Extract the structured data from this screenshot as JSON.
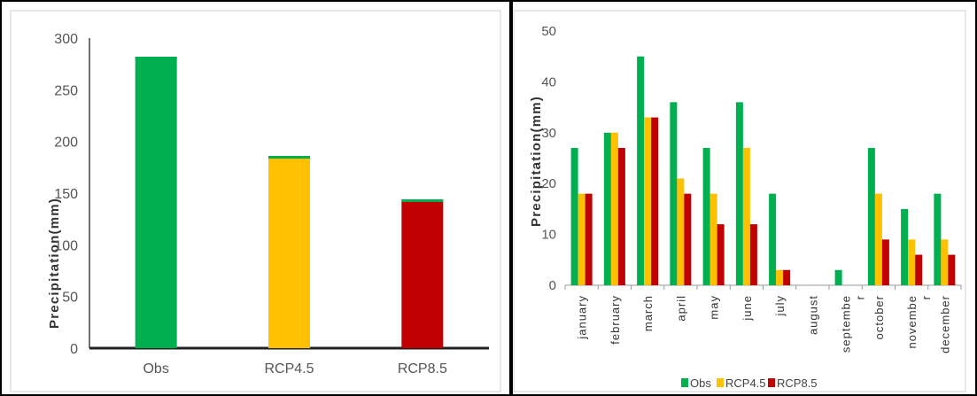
{
  "chart_data": [
    {
      "type": "bar",
      "categories": [
        "Obs",
        "RCP4.5",
        "RCP8.5"
      ],
      "values": [
        282,
        186,
        144
      ],
      "bar_colors": [
        "#00b050",
        "#ffc000",
        "#c00000"
      ],
      "ylabel": "Precipitation(mm)",
      "ylim": [
        0,
        300
      ],
      "yticks": [
        "0",
        "50",
        "100",
        "150",
        "200",
        "250",
        "300"
      ],
      "grid": false,
      "legend": "none"
    },
    {
      "type": "bar",
      "categories": [
        "january",
        "february",
        "march",
        "april",
        "may",
        "june",
        "july",
        "august",
        "septembe r",
        "october",
        "novembe r",
        "december"
      ],
      "series": [
        {
          "name": "Obs",
          "color": "#00b050",
          "values": [
            27,
            30,
            45,
            36,
            27,
            36,
            18,
            0,
            3,
            27,
            15,
            18
          ]
        },
        {
          "name": "RCP4.5",
          "color": "#ffc000",
          "values": [
            18,
            30,
            33,
            21,
            18,
            27,
            3,
            0,
            0,
            18,
            9,
            9
          ]
        },
        {
          "name": "RCP8.5",
          "color": "#c00000",
          "values": [
            18,
            27,
            33,
            18,
            12,
            12,
            3,
            0,
            0,
            9,
            6,
            6
          ]
        }
      ],
      "ylabel": "Precipitation(mm)",
      "ylim": [
        0,
        50
      ],
      "yticks": [
        "0",
        "10",
        "20",
        "30",
        "40",
        "50"
      ],
      "grid": false,
      "legend": "bottom"
    }
  ]
}
